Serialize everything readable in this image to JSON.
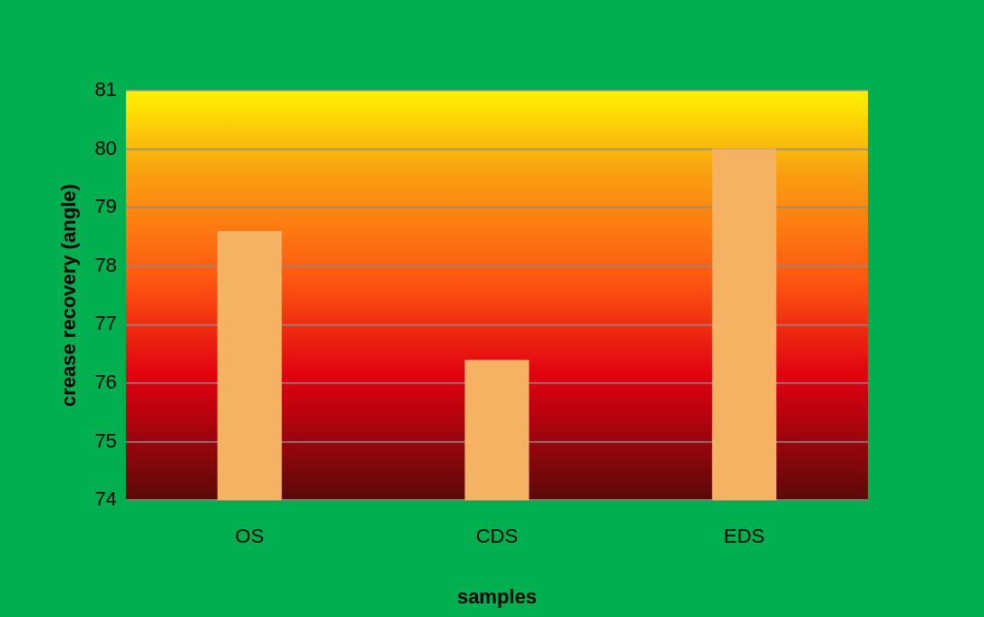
{
  "chart_data": {
    "type": "bar",
    "xlabel": "samples",
    "ylabel": "crease recovery (angle)",
    "categories": [
      "OS",
      "CDS",
      "EDS"
    ],
    "values": [
      78.6,
      76.4,
      80.0
    ],
    "color": "#f5b262",
    "ylim": [
      74,
      81
    ],
    "yticks": [
      74,
      75,
      76,
      77,
      78,
      79,
      80,
      81
    ],
    "grid": "y"
  }
}
